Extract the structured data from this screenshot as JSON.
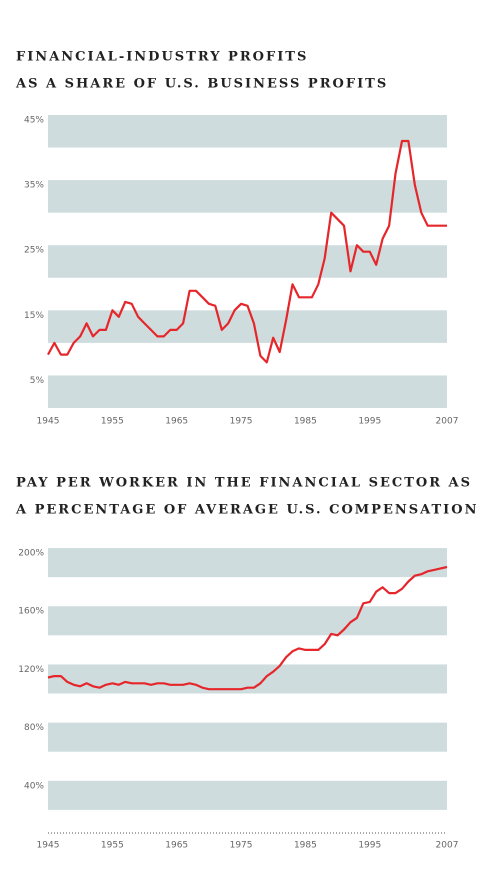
{
  "chart_data": [
    {
      "type": "line",
      "title": [
        "FINANCIAL-INDUSTRY PROFITS",
        "AS A SHARE OF U.S. BUSINESS PROFITS"
      ],
      "color": "#e5262b",
      "x": [
        1945,
        1946,
        1947,
        1948,
        1949,
        1950,
        1951,
        1952,
        1953,
        1954,
        1955,
        1956,
        1957,
        1958,
        1959,
        1960,
        1961,
        1962,
        1963,
        1964,
        1965,
        1966,
        1967,
        1968,
        1969,
        1970,
        1971,
        1972,
        1973,
        1974,
        1975,
        1976,
        1977,
        1978,
        1979,
        1980,
        1981,
        1982,
        1983,
        1984,
        1985,
        1986,
        1987,
        1988,
        1989,
        1990,
        1991,
        1992,
        1993,
        1994,
        1995,
        1996,
        1997,
        1998,
        1999,
        2000,
        2001,
        2002,
        2003,
        2004,
        2005,
        2006,
        2007
      ],
      "values": [
        8.2,
        10,
        8.2,
        8.2,
        10,
        11,
        13,
        11,
        12,
        12,
        15,
        14,
        16.3,
        16,
        14,
        13,
        12,
        11,
        11,
        12,
        12,
        13,
        18,
        18,
        17,
        16,
        15.7,
        12,
        13,
        15,
        16,
        15.7,
        13,
        8,
        7,
        10.8,
        8.6,
        13.5,
        19,
        17,
        17,
        17,
        19,
        23,
        30,
        29,
        28,
        21,
        25,
        24,
        24,
        22,
        26,
        28,
        36,
        41,
        41,
        34.3,
        30,
        28,
        28,
        28,
        28
      ],
      "xlim": [
        1945,
        2007
      ],
      "xticks": [
        1945,
        1955,
        1965,
        1975,
        1985,
        1995,
        2007
      ],
      "ylim": [
        0,
        45
      ],
      "yticks": [
        {
          "value": 5,
          "label": "5%"
        },
        {
          "value": 15,
          "label": "15%"
        },
        {
          "value": 25,
          "label": "25%"
        },
        {
          "value": 35,
          "label": "35%"
        },
        {
          "value": 45,
          "label": "45%"
        }
      ]
    },
    {
      "type": "line",
      "title": [
        "PAY PER WORKER IN THE FINANCIAL SECTOR AS",
        "A PERCENTAGE OF AVERAGE U.S. COMPENSATION"
      ],
      "color": "#e5262b",
      "x": [
        1945,
        1946,
        1947,
        1948,
        1949,
        1950,
        1951,
        1952,
        1953,
        1954,
        1955,
        1956,
        1957,
        1958,
        1959,
        1960,
        1961,
        1962,
        1963,
        1964,
        1965,
        1966,
        1967,
        1968,
        1969,
        1970,
        1971,
        1972,
        1973,
        1974,
        1975,
        1976,
        1977,
        1978,
        1979,
        1980,
        1981,
        1982,
        1983,
        1984,
        1985,
        1986,
        1987,
        1988,
        1989,
        1990,
        1991,
        1992,
        1993,
        1994,
        1995,
        1996,
        1997,
        1998,
        1999,
        2000,
        2001,
        2002,
        2003,
        2004,
        2005,
        2006,
        2007
      ],
      "values": [
        111,
        112,
        112,
        108,
        106,
        105,
        107,
        105,
        104,
        106,
        107,
        106,
        108,
        107,
        107,
        107,
        106,
        107,
        107,
        106,
        106,
        106,
        107,
        106,
        104,
        103,
        103,
        103,
        103,
        103,
        103,
        104,
        104,
        107,
        112,
        115,
        119,
        125,
        129,
        131,
        130,
        130,
        130,
        134,
        141,
        140,
        144,
        149,
        152,
        162,
        163,
        170,
        173,
        169,
        169,
        172,
        177,
        181,
        182,
        184,
        185,
        186,
        187
      ],
      "xlim": [
        1945,
        2007
      ],
      "xticks": [
        1945,
        1955,
        1965,
        1975,
        1985,
        1995,
        2007
      ],
      "ylim": [
        0,
        210
      ],
      "yticks": [
        {
          "value": 40,
          "label": "40%"
        },
        {
          "value": 80,
          "label": "80%"
        },
        {
          "value": 120,
          "label": "120%"
        },
        {
          "value": 160,
          "label": "160%"
        },
        {
          "value": 200,
          "label": "200%"
        }
      ]
    }
  ]
}
